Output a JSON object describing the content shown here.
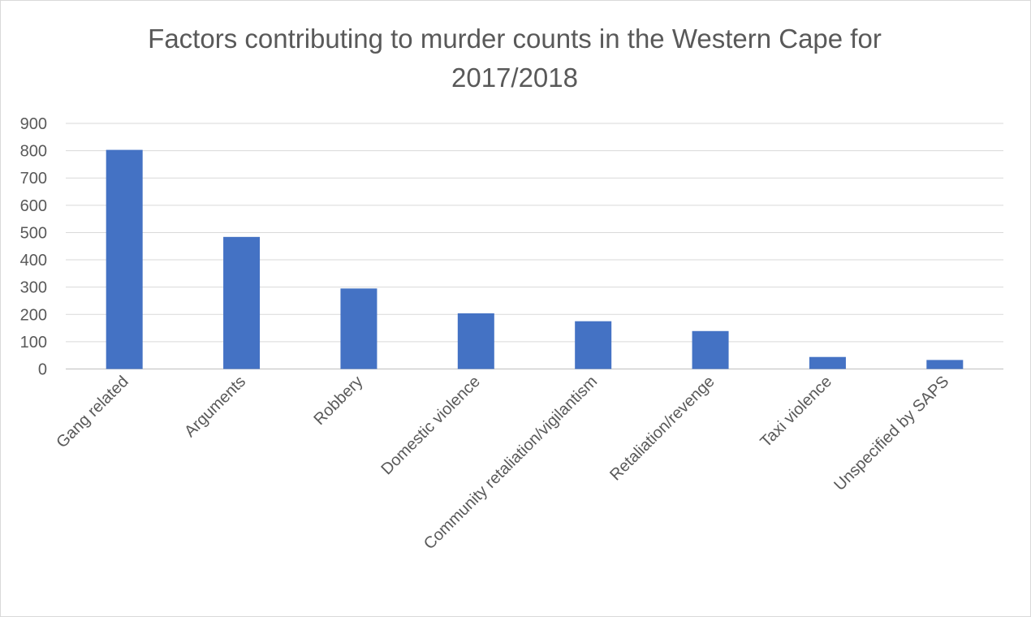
{
  "chart_data": {
    "type": "bar",
    "title": "Factors contributing to murder counts in the Western Cape for 2017/2018",
    "title_lines": [
      "Factors contributing to murder counts in the Western Cape for",
      "2017/2018"
    ],
    "xlabel": "",
    "ylabel": "",
    "categories": [
      "Gang related",
      "Arguments",
      "Robbery",
      "Domestic violence",
      "Community retaliation/vigilantism",
      "Retaliation/revenge",
      "Taxi violence",
      "Unspecified by SAPS"
    ],
    "values": [
      803,
      484,
      295,
      204,
      175,
      139,
      44,
      33
    ],
    "ylim": [
      0,
      900
    ],
    "yticks": [
      0,
      100,
      200,
      300,
      400,
      500,
      600,
      700,
      800,
      900
    ],
    "grid": true,
    "legend": "none",
    "bar_color": "#4472c4"
  }
}
